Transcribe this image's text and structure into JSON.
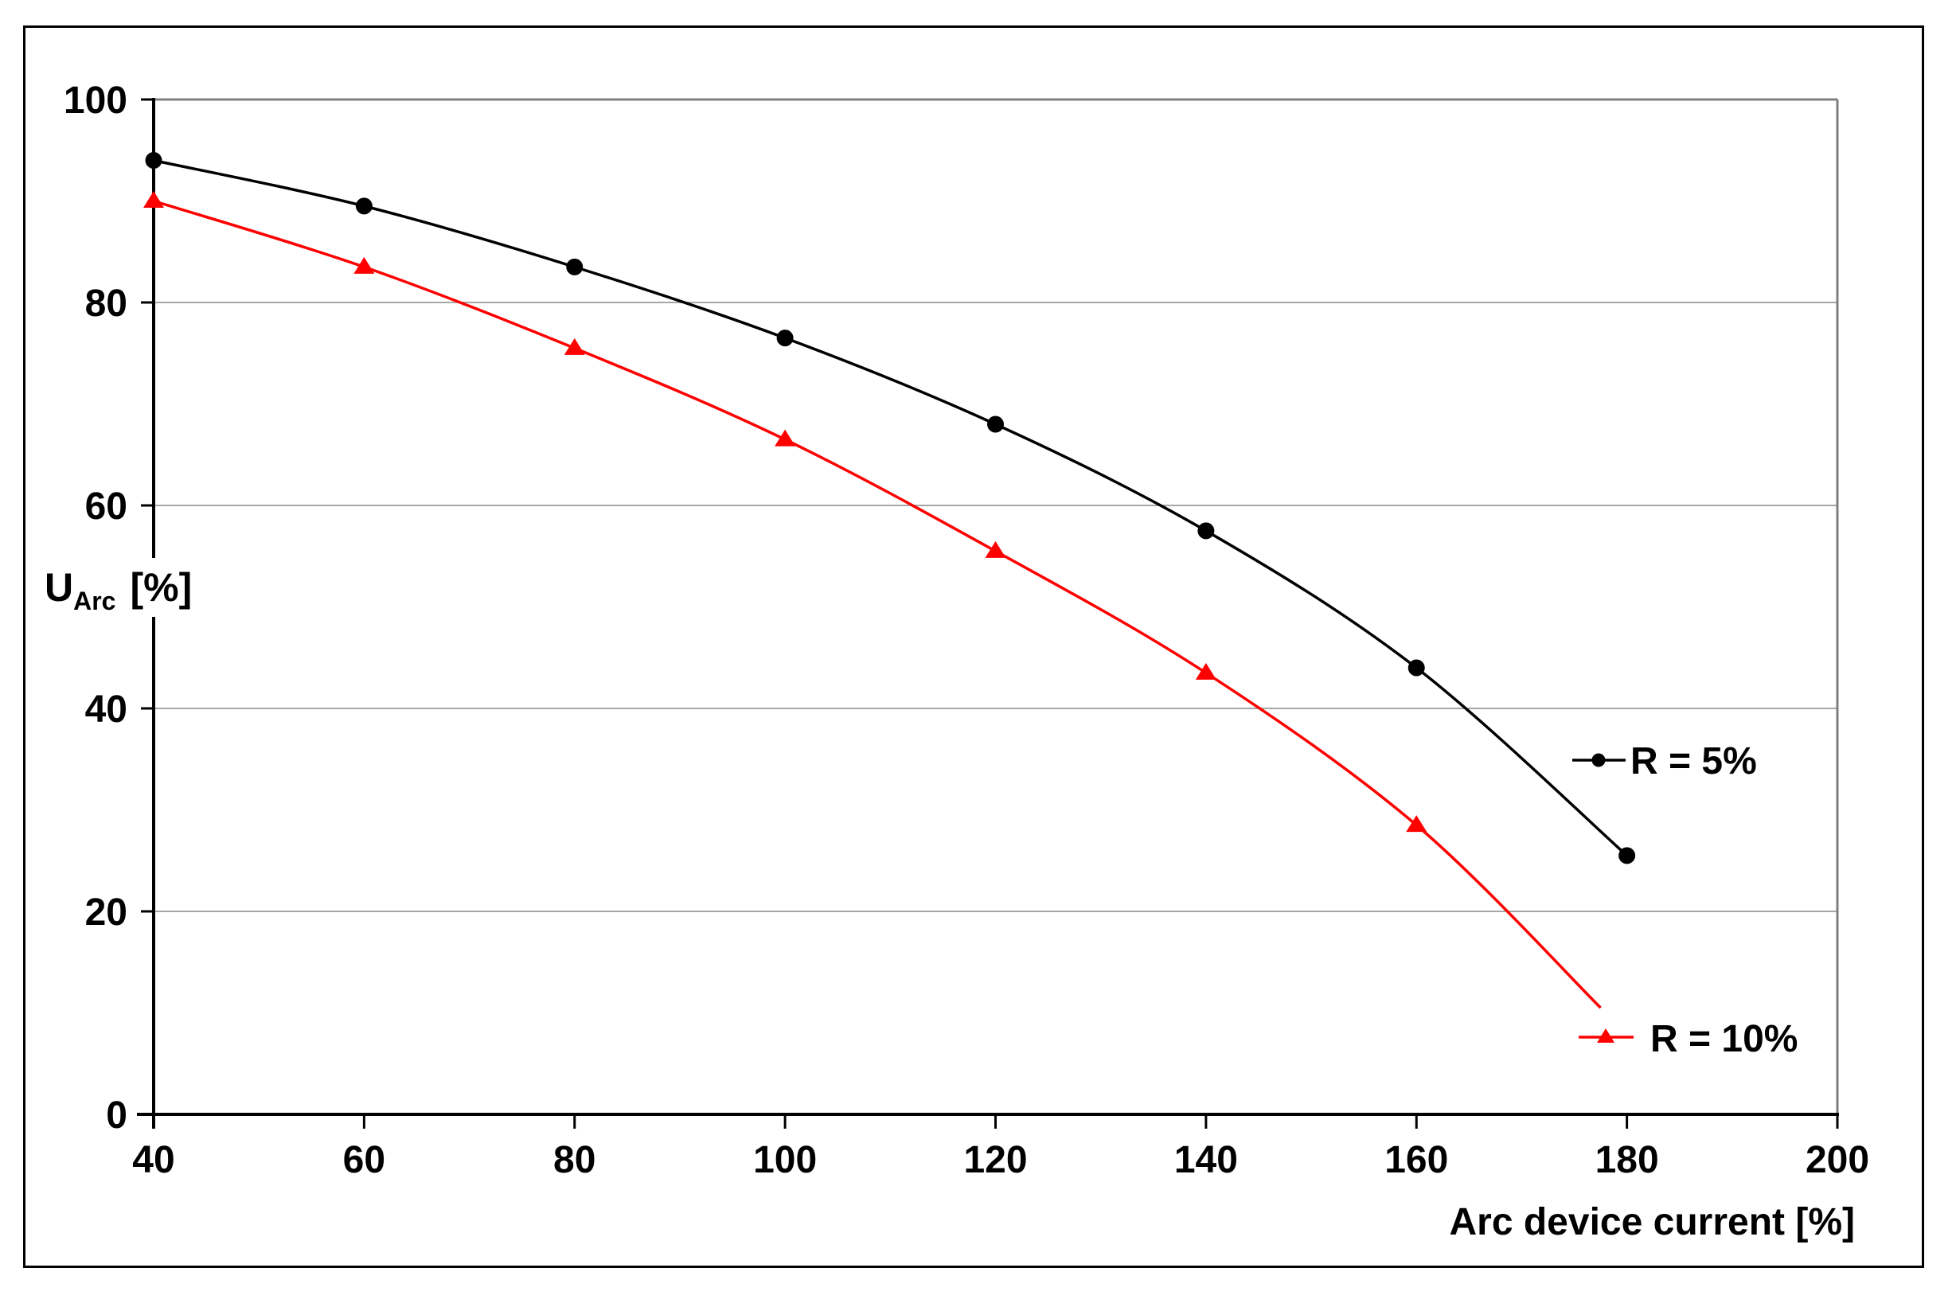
{
  "chart_data": {
    "type": "line",
    "title": "",
    "xlabel": "Arc device current  [%]",
    "ylabel": {
      "symbol": "U",
      "subscript": "Arc",
      "unit": "[%]"
    },
    "x_ticks": [
      "40",
      "60",
      "80",
      "100",
      "120",
      "140",
      "160",
      "180",
      "200"
    ],
    "y_ticks": [
      "0",
      "20",
      "40",
      "60",
      "80",
      "100"
    ],
    "xlim": [
      40,
      200
    ],
    "ylim": [
      0,
      100
    ],
    "grid": "horizontal gridlines only",
    "legend_position": "inside plot, right side at mid-height, stacked",
    "series": [
      {
        "name": "R = 5%",
        "color": "#000000",
        "marker": "circle",
        "x": [
          40,
          60,
          80,
          100,
          120,
          140,
          160,
          180
        ],
        "values": [
          94,
          89.5,
          83.5,
          76.5,
          68,
          57.5,
          44,
          25.5
        ]
      },
      {
        "name": "R = 10%",
        "color": "#ff0000",
        "marker": "triangle",
        "x": [
          40,
          60,
          80,
          100,
          120,
          140,
          160
        ],
        "values": [
          90,
          83.5,
          75.5,
          66.5,
          55.5,
          43.5,
          28.5
        ],
        "line_end_x": 177.5,
        "line_end_y": 10.5,
        "line_end_note": "curve continues past the 160% marker and ends without a marker"
      }
    ],
    "colors": {
      "series_r5": "#000000",
      "series_r10": "#ff0000",
      "gridline": "#a6a6a6",
      "plot_border": "#7f7f7f",
      "axis": "#000000"
    }
  }
}
